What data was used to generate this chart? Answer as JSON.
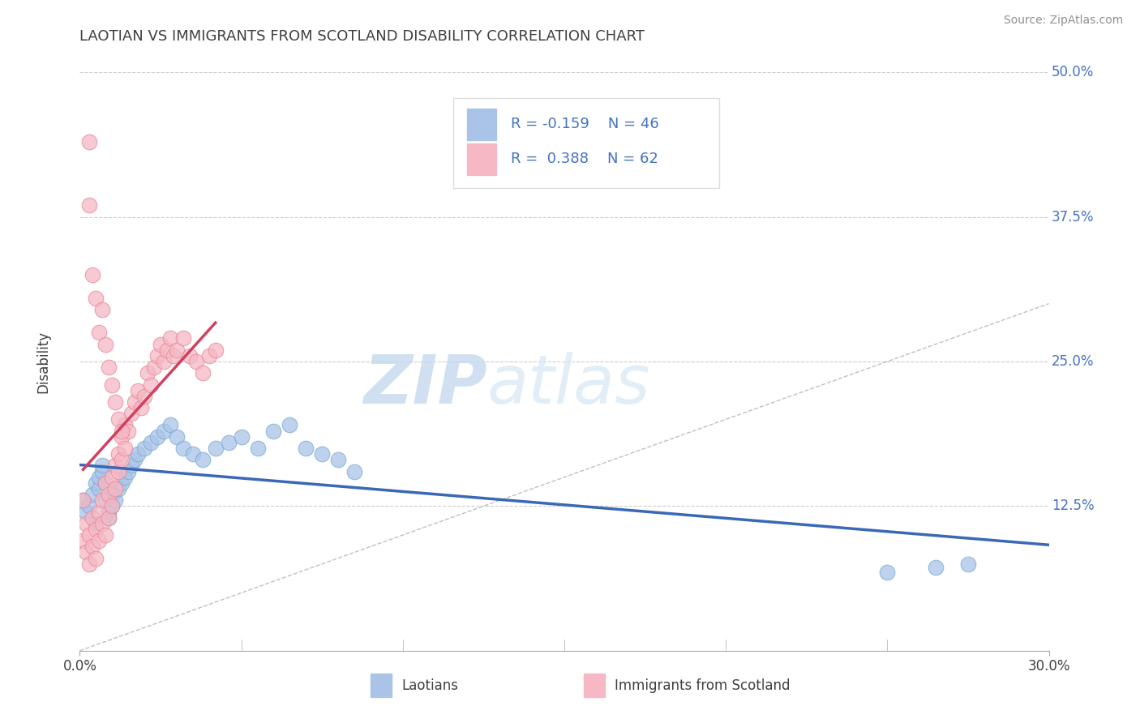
{
  "title": "LAOTIAN VS IMMIGRANTS FROM SCOTLAND DISABILITY CORRELATION CHART",
  "source": "Source: ZipAtlas.com",
  "ylabel": "Disability",
  "watermark_zip": "ZIP",
  "watermark_atlas": "atlas",
  "x_min": 0.0,
  "x_max": 0.3,
  "y_min": 0.0,
  "y_max": 0.5,
  "x_tick_labels": [
    "0.0%",
    "30.0%"
  ],
  "y_ticks": [
    0.125,
    0.25,
    0.375,
    0.5
  ],
  "y_tick_labels": [
    "12.5%",
    "25.0%",
    "37.5%",
    "50.0%"
  ],
  "series1_name": "Laotians",
  "series1_color": "#aac4e8",
  "series1_edge_color": "#7aaad4",
  "series1_R": -0.159,
  "series1_N": 46,
  "series2_name": "Immigrants from Scotland",
  "series2_color": "#f5b8c4",
  "series2_edge_color": "#e88898",
  "series2_R": 0.388,
  "series2_N": 62,
  "trend1_color": "#3a68b8",
  "trend2_color": "#d04060",
  "legend_text_color": "#4472c4",
  "background_color": "#ffffff",
  "grid_color": "#cccccc",
  "title_color": "#404040",
  "source_color": "#909090",
  "ylabel_color": "#404040",
  "scatter1_x": [
    0.001,
    0.002,
    0.003,
    0.004,
    0.005,
    0.005,
    0.006,
    0.006,
    0.007,
    0.007,
    0.008,
    0.008,
    0.009,
    0.009,
    0.01,
    0.01,
    0.011,
    0.012,
    0.013,
    0.014,
    0.015,
    0.016,
    0.017,
    0.018,
    0.02,
    0.022,
    0.024,
    0.026,
    0.028,
    0.03,
    0.032,
    0.035,
    0.038,
    0.042,
    0.046,
    0.05,
    0.055,
    0.06,
    0.065,
    0.07,
    0.075,
    0.08,
    0.085,
    0.25,
    0.265,
    0.275
  ],
  "scatter1_y": [
    0.13,
    0.12,
    0.125,
    0.135,
    0.145,
    0.11,
    0.14,
    0.15,
    0.155,
    0.16,
    0.145,
    0.13,
    0.12,
    0.115,
    0.125,
    0.135,
    0.13,
    0.14,
    0.145,
    0.15,
    0.155,
    0.16,
    0.165,
    0.17,
    0.175,
    0.18,
    0.185,
    0.19,
    0.195,
    0.185,
    0.175,
    0.17,
    0.165,
    0.175,
    0.18,
    0.185,
    0.175,
    0.19,
    0.195,
    0.175,
    0.17,
    0.165,
    0.155,
    0.068,
    0.072,
    0.075
  ],
  "scatter2_x": [
    0.001,
    0.001,
    0.002,
    0.002,
    0.003,
    0.003,
    0.004,
    0.004,
    0.005,
    0.005,
    0.006,
    0.006,
    0.007,
    0.007,
    0.008,
    0.008,
    0.009,
    0.009,
    0.01,
    0.01,
    0.011,
    0.011,
    0.012,
    0.012,
    0.013,
    0.013,
    0.014,
    0.014,
    0.015,
    0.016,
    0.017,
    0.018,
    0.019,
    0.02,
    0.021,
    0.022,
    0.023,
    0.024,
    0.025,
    0.026,
    0.027,
    0.028,
    0.029,
    0.03,
    0.032,
    0.034,
    0.036,
    0.038,
    0.04,
    0.042,
    0.003,
    0.003,
    0.004,
    0.005,
    0.006,
    0.007,
    0.008,
    0.009,
    0.01,
    0.011,
    0.012,
    0.013
  ],
  "scatter2_y": [
    0.13,
    0.095,
    0.11,
    0.085,
    0.1,
    0.075,
    0.09,
    0.115,
    0.08,
    0.105,
    0.095,
    0.12,
    0.11,
    0.13,
    0.1,
    0.145,
    0.115,
    0.135,
    0.125,
    0.15,
    0.14,
    0.16,
    0.155,
    0.17,
    0.165,
    0.185,
    0.175,
    0.195,
    0.19,
    0.205,
    0.215,
    0.225,
    0.21,
    0.22,
    0.24,
    0.23,
    0.245,
    0.255,
    0.265,
    0.25,
    0.26,
    0.27,
    0.255,
    0.26,
    0.27,
    0.255,
    0.25,
    0.24,
    0.255,
    0.26,
    0.44,
    0.385,
    0.325,
    0.305,
    0.275,
    0.295,
    0.265,
    0.245,
    0.23,
    0.215,
    0.2,
    0.19
  ]
}
